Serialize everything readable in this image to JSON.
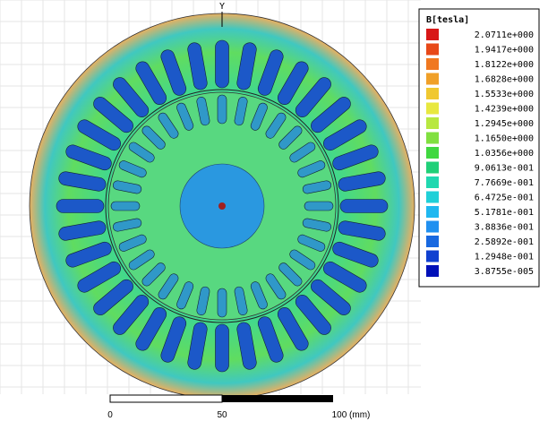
{
  "plot": {
    "axis_label": "Y"
  },
  "legend": {
    "title": "B[tesla]",
    "entries": [
      {
        "label": "2.0711e+000",
        "color": "#d81818"
      },
      {
        "label": "1.9417e+000",
        "color": "#e84818"
      },
      {
        "label": "1.8122e+000",
        "color": "#f07820"
      },
      {
        "label": "1.6828e+000",
        "color": "#f0a028"
      },
      {
        "label": "1.5533e+000",
        "color": "#f0c830"
      },
      {
        "label": "1.4239e+000",
        "color": "#e8e840"
      },
      {
        "label": "1.2945e+000",
        "color": "#b8e840"
      },
      {
        "label": "1.1650e+000",
        "color": "#80e040"
      },
      {
        "label": "1.0356e+000",
        "color": "#40d840"
      },
      {
        "label": "9.0613e-001",
        "color": "#20d078"
      },
      {
        "label": "7.7669e-001",
        "color": "#20d8b0"
      },
      {
        "label": "6.4725e-001",
        "color": "#20d0d8"
      },
      {
        "label": "5.1781e-001",
        "color": "#20b8f0"
      },
      {
        "label": "3.8836e-001",
        "color": "#2090f0"
      },
      {
        "label": "2.5892e-001",
        "color": "#1868e0"
      },
      {
        "label": "1.2948e-001",
        "color": "#1040d0"
      },
      {
        "label": "3.8755e-005",
        "color": "#0010b8"
      }
    ]
  },
  "scale_bar": {
    "labels": [
      "0",
      "50",
      "100 (mm)"
    ]
  }
}
